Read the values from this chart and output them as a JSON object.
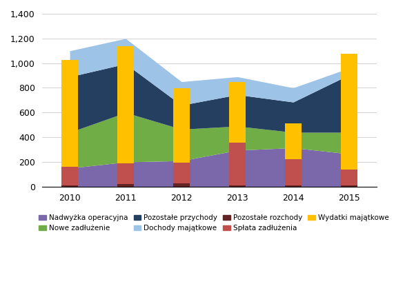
{
  "years": [
    2010,
    2011,
    2012,
    2013,
    2014,
    2015
  ],
  "area_series_order": [
    "Nadwyżka operacyjna",
    "Nowe zadłużenie",
    "Pozostałe przychody",
    "Dochody majątkowe"
  ],
  "area_series": {
    "Nadwyżka operacyjna": {
      "values": [
        150,
        200,
        210,
        295,
        315,
        265
      ],
      "color": "#7B68AA"
    },
    "Nowe zadłużenie": {
      "values": [
        290,
        400,
        255,
        195,
        125,
        175
      ],
      "color": "#70AD47"
    },
    "Pozostałe przychody": {
      "values": [
        450,
        395,
        195,
        255,
        245,
        465
      ],
      "color": "#243F60"
    },
    "Dochody majątkowe": {
      "values": [
        210,
        205,
        190,
        145,
        115,
        55
      ],
      "color": "#9DC3E6"
    }
  },
  "bar_series_order": [
    "Pozostałe rozchody",
    "Spłata zadłużenia",
    "Wydatki majątkowe"
  ],
  "bar_series": {
    "Pozostałe rozchody": {
      "values": [
        10,
        20,
        25,
        10,
        10,
        10
      ],
      "color": "#632523"
    },
    "Spłata zadłużenia": {
      "values": [
        150,
        170,
        170,
        345,
        210,
        130
      ],
      "color": "#C0504D"
    },
    "Wydatki majątkowe": {
      "values": [
        865,
        950,
        600,
        490,
        295,
        935
      ],
      "color": "#FFC000"
    }
  },
  "ylim": [
    0,
    1400
  ],
  "yticks": [
    0,
    200,
    400,
    600,
    800,
    1000,
    1200,
    1400
  ],
  "bar_width": 0.3,
  "legend_order": [
    "Nadwyżka operacyjna",
    "Nowe zadłużenie",
    "Pozostałe przychody",
    "Dochody majątkowe",
    "Pozostałe rozchody",
    "Spłata zadłużenia",
    "Wydatki majątkowe"
  ],
  "legend_colors": [
    "#7B68AA",
    "#70AD47",
    "#243F60",
    "#9DC3E6",
    "#632523",
    "#C0504D",
    "#FFC000"
  ],
  "fig_bg": "#FFFFFF",
  "plot_bg": "#FFFFFF"
}
